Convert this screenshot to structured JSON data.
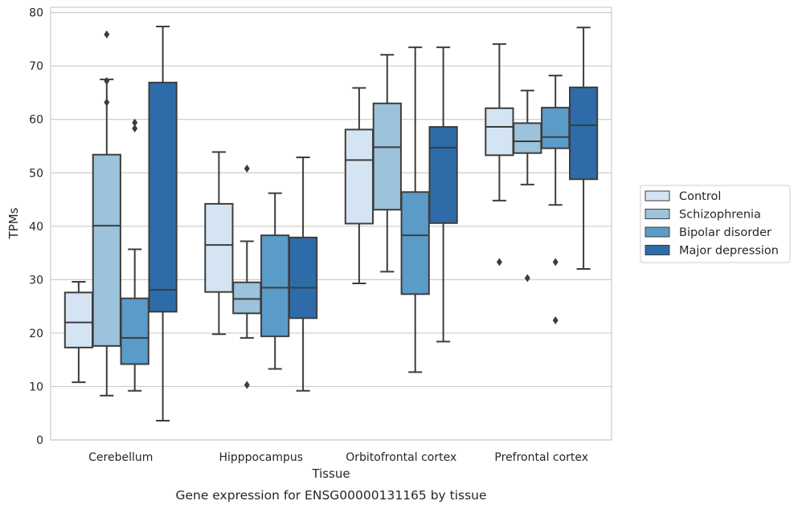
{
  "chart_data": {
    "type": "box",
    "xlabel": "Tissue",
    "ylabel": "TPMs",
    "ylim": [
      0,
      81
    ],
    "yticks": [
      0,
      10,
      20,
      30,
      40,
      50,
      60,
      70,
      80
    ],
    "grid": true,
    "categories": [
      "Cerebellum",
      "Hipppocampus",
      "Orbitofrontal cortex",
      "Prefrontal cortex"
    ],
    "legend_position": "right",
    "caption": "Gene expression for ENSG00000131165 by tissue",
    "series": [
      {
        "name": "Control",
        "color": "#d4e4f3",
        "boxes": [
          {
            "whislo": 10.8,
            "q1": 17.3,
            "med": 22.0,
            "q3": 27.6,
            "whishi": 29.6,
            "fliers": []
          },
          {
            "whislo": 19.8,
            "q1": 27.7,
            "med": 36.5,
            "q3": 44.2,
            "whishi": 53.9,
            "fliers": []
          },
          {
            "whislo": 29.3,
            "q1": 40.5,
            "med": 52.4,
            "q3": 58.1,
            "whishi": 65.9,
            "fliers": []
          },
          {
            "whislo": 44.8,
            "q1": 53.3,
            "med": 58.6,
            "q3": 62.1,
            "whishi": 74.1,
            "fliers": [
              33.3
            ]
          }
        ]
      },
      {
        "name": "Schizophrenia",
        "color": "#9cc2dc",
        "boxes": [
          {
            "whislo": 8.3,
            "q1": 17.6,
            "med": 40.1,
            "q3": 53.4,
            "whishi": 67.5,
            "fliers": [
              63.2,
              67.2,
              75.9
            ]
          },
          {
            "whislo": 19.1,
            "q1": 23.7,
            "med": 26.4,
            "q3": 29.5,
            "whishi": 37.2,
            "fliers": [
              10.3,
              50.8
            ]
          },
          {
            "whislo": 31.5,
            "q1": 43.1,
            "med": 54.8,
            "q3": 63.0,
            "whishi": 72.1,
            "fliers": []
          },
          {
            "whislo": 47.8,
            "q1": 53.7,
            "med": 55.9,
            "q3": 59.3,
            "whishi": 65.4,
            "fliers": [
              30.3
            ]
          }
        ]
      },
      {
        "name": "Bipolar disorder",
        "color": "#5b9bc8",
        "boxes": [
          {
            "whislo": 9.2,
            "q1": 14.2,
            "med": 19.1,
            "q3": 26.5,
            "whishi": 35.7,
            "fliers": [
              58.3,
              59.4
            ]
          },
          {
            "whislo": 13.3,
            "q1": 19.4,
            "med": 28.5,
            "q3": 38.3,
            "whishi": 46.2,
            "fliers": []
          },
          {
            "whislo": 12.7,
            "q1": 27.3,
            "med": 38.3,
            "q3": 46.4,
            "whishi": 73.5,
            "fliers": []
          },
          {
            "whislo": 44.0,
            "q1": 54.6,
            "med": 56.7,
            "q3": 62.2,
            "whishi": 68.2,
            "fliers": [
              22.4,
              33.3
            ]
          }
        ]
      },
      {
        "name": "Major depression",
        "color": "#2d6ca8",
        "boxes": [
          {
            "whislo": 3.6,
            "q1": 24.0,
            "med": 28.1,
            "q3": 66.9,
            "whishi": 77.4,
            "fliers": []
          },
          {
            "whislo": 9.2,
            "q1": 22.8,
            "med": 28.5,
            "q3": 37.9,
            "whishi": 52.9,
            "fliers": []
          },
          {
            "whislo": 18.4,
            "q1": 40.6,
            "med": 54.7,
            "q3": 58.6,
            "whishi": 73.5,
            "fliers": []
          },
          {
            "whislo": 32.0,
            "q1": 48.8,
            "med": 58.9,
            "q3": 66.0,
            "whishi": 77.2,
            "fliers": []
          }
        ]
      }
    ]
  }
}
